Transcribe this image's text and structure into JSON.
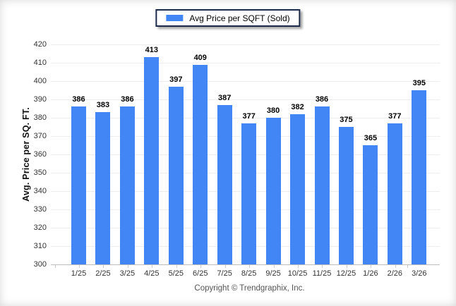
{
  "legend": {
    "label": "Avg Price per SQFT (Sold)",
    "swatch_color": "#4285F4"
  },
  "footer": {
    "copyright": "Copyright © Trendgraphix, Inc."
  },
  "chart_data": {
    "type": "bar",
    "series_name": "Avg Price per SQFT (Sold)",
    "categories": [
      "1/25",
      "2/25",
      "3/25",
      "4/25",
      "5/25",
      "6/25",
      "7/25",
      "8/25",
      "9/25",
      "10/25",
      "11/25",
      "12/25",
      "1/26",
      "2/26",
      "3/26"
    ],
    "values": [
      386,
      383,
      386,
      413,
      397,
      409,
      387,
      377,
      380,
      382,
      386,
      375,
      365,
      377,
      395
    ],
    "title": "",
    "xlabel": "",
    "ylabel": "Avg. Price per SQ. FT.",
    "ylim": [
      300,
      420
    ],
    "ytick_step": 10,
    "grid": "horizontal",
    "value_labels": true,
    "legend_position": "top-center",
    "colors": {
      "bar": "#4285F4",
      "gridline": "#ededed",
      "axis": "#bdbdbd",
      "tick_text": "#333333",
      "legend_border": "#1b2a4a"
    }
  }
}
